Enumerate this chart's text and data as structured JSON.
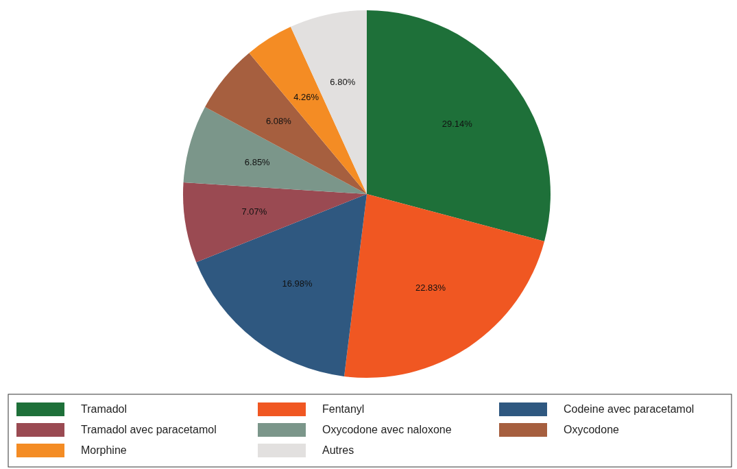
{
  "chart_data": {
    "type": "pie",
    "categories": [
      "Tramadol",
      "Fentanyl",
      "Codeine avec paracetamol",
      "Tramadol avec paracetamol",
      "Oxycodone avec naloxone",
      "Oxycodone",
      "Morphine",
      "Autres"
    ],
    "values": [
      29.14,
      22.83,
      16.98,
      7.07,
      6.85,
      6.08,
      4.26,
      6.8
    ],
    "colors": [
      "#1e7039",
      "#f05722",
      "#2f5880",
      "#9a4a52",
      "#7b968a",
      "#a65f3f",
      "#f48c24",
      "#e2e0df"
    ],
    "value_labels": [
      "29.14%",
      "22.83%",
      "16.98%",
      "7.07%",
      "6.85%",
      "6.08%",
      "4.26%",
      "6.80%"
    ],
    "legend": "bottom"
  }
}
